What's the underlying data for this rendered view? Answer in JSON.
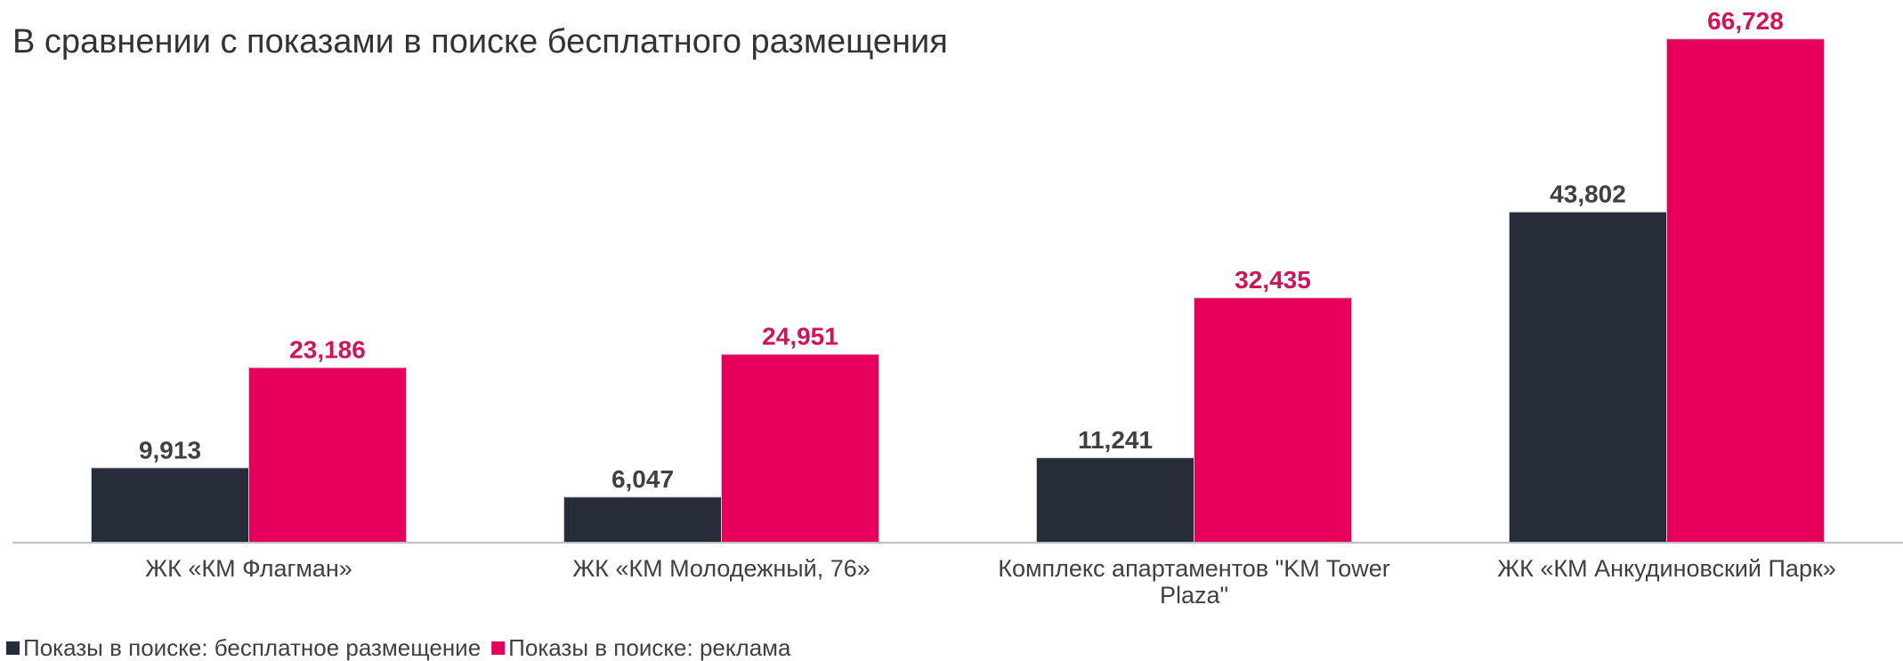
{
  "chart_data": {
    "type": "bar",
    "title": "В сравнении с показами в поиске бесплатного размещения",
    "categories": [
      "ЖК «КМ Флагман»",
      "ЖК «КМ Молодежный, 76»",
      "Комплекс апартаментов \"KM Tower Plaza\"",
      "ЖК «КМ Анкудиновский Парк»"
    ],
    "series": [
      {
        "name": "Показы в поиске: бесплатное размещение",
        "color": "#272c3b",
        "label_color": "#404040",
        "values": [
          9913,
          6047,
          11241,
          43802
        ],
        "value_labels": [
          "9,913",
          "6,047",
          "11,241",
          "43,802"
        ]
      },
      {
        "name": "Показы в поиске: реклама",
        "color": "#e6005c",
        "label_color": "#d0145a",
        "values": [
          23186,
          24951,
          32435,
          66728
        ],
        "value_labels": [
          "23,186",
          "24,951",
          "32,435",
          "66,728"
        ]
      }
    ],
    "ylim": [
      0,
      70000
    ]
  }
}
